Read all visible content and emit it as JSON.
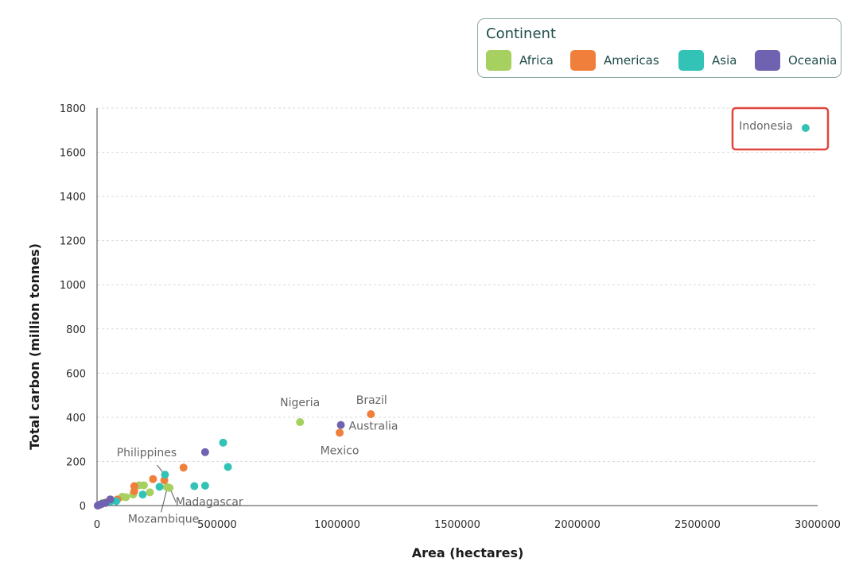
{
  "legend": {
    "title": "Continent",
    "entries": [
      {
        "name": "Africa",
        "color": "#a6d05f"
      },
      {
        "name": "Americas",
        "color": "#f07f3c"
      },
      {
        "name": "Asia",
        "color": "#33c3b6"
      },
      {
        "name": "Oceania",
        "color": "#6f62b0"
      }
    ]
  },
  "highlight_color": "#e0453d",
  "chart_data": {
    "type": "scatter",
    "xlabel": "Area (hectares)",
    "ylabel": "Total carbon (million tonnes)",
    "xlim": [
      0,
      3000000
    ],
    "ylim": [
      0,
      1800
    ],
    "xticks": [
      0,
      500000,
      1000000,
      1500000,
      2000000,
      2500000,
      3000000
    ],
    "yticks": [
      0,
      200,
      400,
      600,
      800,
      1000,
      1200,
      1400,
      1600,
      1800
    ],
    "grid": "horizontal dashed",
    "legend_position": "top-right",
    "highlighted_point": "Indonesia",
    "series": [
      {
        "name": "Africa",
        "color": "#a6d05f",
        "points": [
          {
            "x": 845000,
            "y": 378,
            "label": "Nigeria"
          },
          {
            "x": 302000,
            "y": 80,
            "label": "Madagascar"
          },
          {
            "x": 290000,
            "y": 85,
            "label": "Mozambique"
          },
          {
            "x": 105000,
            "y": 40
          },
          {
            "x": 120000,
            "y": 38
          },
          {
            "x": 150000,
            "y": 50
          },
          {
            "x": 175000,
            "y": 92
          },
          {
            "x": 195000,
            "y": 92
          },
          {
            "x": 220000,
            "y": 60
          },
          {
            "x": 60000,
            "y": 25
          },
          {
            "x": 25000,
            "y": 12
          }
        ]
      },
      {
        "name": "Americas",
        "color": "#f07f3c",
        "points": [
          {
            "x": 1140000,
            "y": 414,
            "label": "Brazil"
          },
          {
            "x": 1010000,
            "y": 330,
            "label": "Mexico"
          },
          {
            "x": 360000,
            "y": 172
          },
          {
            "x": 280000,
            "y": 115
          },
          {
            "x": 233000,
            "y": 120
          },
          {
            "x": 155000,
            "y": 88
          },
          {
            "x": 155000,
            "y": 65
          },
          {
            "x": 85000,
            "y": 28
          },
          {
            "x": 40000,
            "y": 15
          },
          {
            "x": 15000,
            "y": 5
          }
        ]
      },
      {
        "name": "Asia",
        "color": "#33c3b6",
        "points": [
          {
            "x": 2950000,
            "y": 1710,
            "label": "Indonesia"
          },
          {
            "x": 283000,
            "y": 140,
            "label": "Philippines"
          },
          {
            "x": 525000,
            "y": 285
          },
          {
            "x": 545000,
            "y": 175
          },
          {
            "x": 450000,
            "y": 90
          },
          {
            "x": 405000,
            "y": 88
          },
          {
            "x": 260000,
            "y": 85
          },
          {
            "x": 190000,
            "y": 50
          },
          {
            "x": 80000,
            "y": 20
          },
          {
            "x": 55000,
            "y": 18
          }
        ]
      },
      {
        "name": "Oceania",
        "color": "#6f62b0",
        "points": [
          {
            "x": 1015000,
            "y": 365,
            "label": "Australia"
          },
          {
            "x": 450000,
            "y": 242
          },
          {
            "x": 55000,
            "y": 28
          },
          {
            "x": 35000,
            "y": 12
          },
          {
            "x": 20000,
            "y": 8
          },
          {
            "x": 8000,
            "y": 3
          },
          {
            "x": 3000,
            "y": 0
          }
        ]
      }
    ]
  }
}
